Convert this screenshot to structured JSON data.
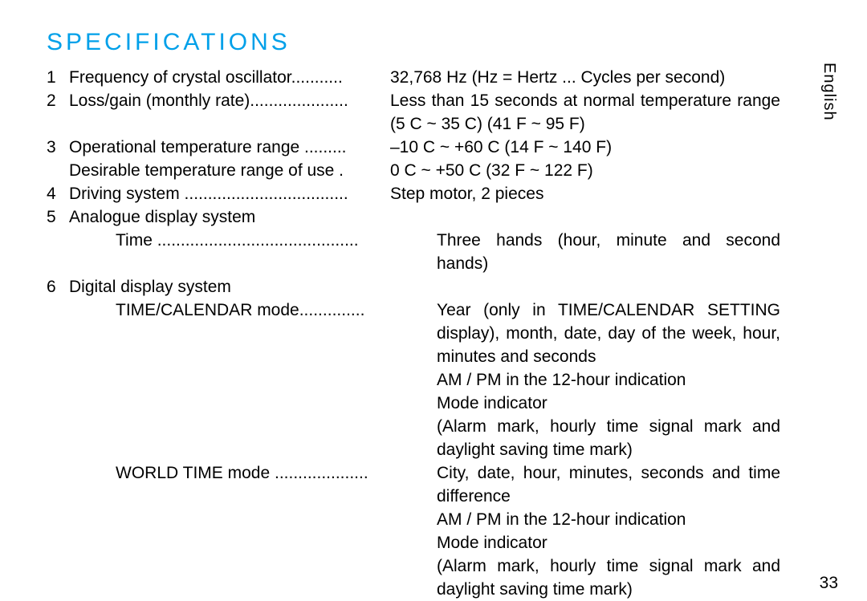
{
  "title": "SPECIFICATIONS",
  "language_tab": "English",
  "page_number": "33",
  "colors": {
    "title": "#00a0e9",
    "text": "#000000",
    "background": "#ffffff"
  },
  "rows": [
    {
      "n": "1",
      "label": "Frequency of crystal oscillator...........",
      "value": "32,768 Hz (Hz = Hertz ... Cycles per second)"
    },
    {
      "n": "2",
      "label": "Loss/gain (monthly rate).....................",
      "value": "Less than 15 seconds at normal temperature range (5  C ~ 35  C) (41  F ~ 95  F)"
    },
    {
      "n": "3",
      "label": "Operational temperature range .........",
      "value": "–10  C ~ +60  C (14  F ~ 140  F)"
    },
    {
      "n": "",
      "label": "Desirable temperature range of use .",
      "value": "0  C ~ +50  C (32  F ~ 122  F)"
    },
    {
      "n": "4",
      "label": "Driving system ...................................",
      "value": "Step motor, 2 pieces"
    },
    {
      "n": "5",
      "label": "Analogue display system",
      "value": ""
    },
    {
      "n": "",
      "sub": true,
      "label": "Time ...........................................",
      "value": "Three hands (hour, minute and second hands)"
    },
    {
      "n": "6",
      "label": "Digital display system",
      "value": ""
    },
    {
      "n": "",
      "sub": true,
      "label": "TIME/CALENDAR mode..............",
      "value": "Year (only in TIME/CALENDAR SETTING display), month, date, day of the week, hour, minutes and seconds\n AM  /  PM   in the 12-hour indication\nMode indicator\n(Alarm mark, hourly time signal mark and daylight saving time mark)"
    },
    {
      "n": "",
      "sub": true,
      "label": "WORLD TIME mode ....................",
      "value": "City, date, hour, minutes, seconds and time difference\n AM  /  PM   in the 12-hour indication\nMode indicator\n(Alarm mark, hourly time signal mark and daylight saving time mark)"
    }
  ]
}
